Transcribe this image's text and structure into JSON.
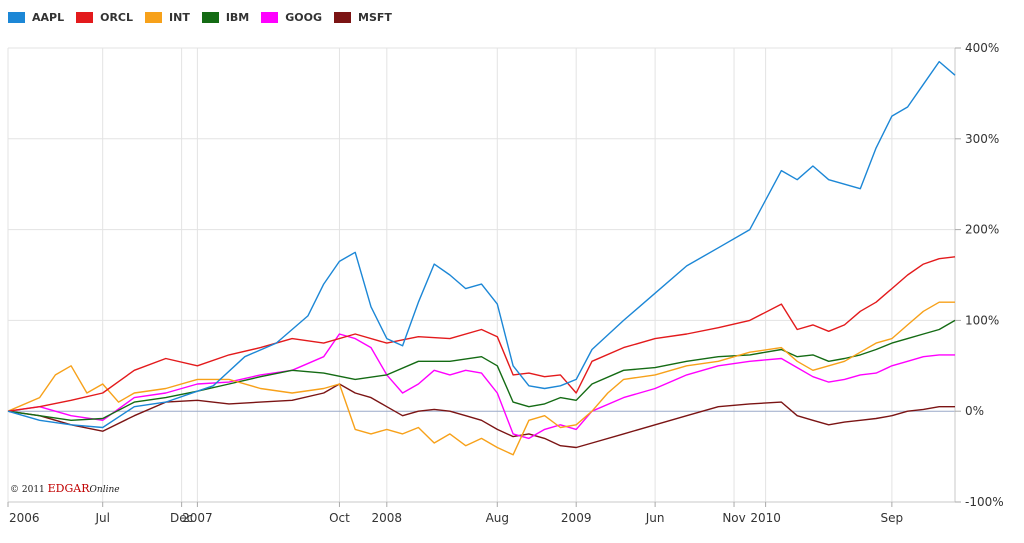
{
  "chart_data": {
    "type": "line",
    "title": "",
    "xlabel": "",
    "ylabel": "",
    "ylim": [
      -100,
      400
    ],
    "y_ticks": [
      "400%",
      "300%",
      "200%",
      "100%",
      "0%",
      "-100%"
    ],
    "y_tick_values": [
      400,
      300,
      200,
      100,
      0,
      -100
    ],
    "x_ticks": [
      "2006",
      "Jul",
      "Dec",
      "2007",
      "Oct",
      "2008",
      "Aug",
      "2009",
      "Jun",
      "Nov",
      "2010",
      "Sep"
    ],
    "x_tick_values": [
      0,
      6,
      11,
      12,
      21,
      24,
      31,
      36,
      41,
      46,
      48,
      56
    ],
    "x_range": [
      0,
      60
    ],
    "grid": true,
    "legend_position": "top-left",
    "series": [
      {
        "name": "AAPL",
        "color": "#1c87d6",
        "values": [
          [
            0,
            0
          ],
          [
            2,
            -10
          ],
          [
            4,
            -15
          ],
          [
            6,
            -18
          ],
          [
            8,
            5
          ],
          [
            10,
            10
          ],
          [
            12,
            22
          ],
          [
            13,
            28
          ],
          [
            15,
            60
          ],
          [
            17,
            75
          ],
          [
            19,
            105
          ],
          [
            20,
            140
          ],
          [
            21,
            165
          ],
          [
            22,
            175
          ],
          [
            23,
            115
          ],
          [
            24,
            80
          ],
          [
            25,
            72
          ],
          [
            26,
            120
          ],
          [
            27,
            162
          ],
          [
            28,
            150
          ],
          [
            29,
            135
          ],
          [
            30,
            140
          ],
          [
            31,
            118
          ],
          [
            32,
            50
          ],
          [
            33,
            28
          ],
          [
            34,
            25
          ],
          [
            35,
            28
          ],
          [
            36,
            35
          ],
          [
            37,
            68
          ],
          [
            39,
            100
          ],
          [
            41,
            130
          ],
          [
            43,
            160
          ],
          [
            45,
            180
          ],
          [
            47,
            200
          ],
          [
            49,
            265
          ],
          [
            50,
            255
          ],
          [
            51,
            270
          ],
          [
            52,
            255
          ],
          [
            53,
            250
          ],
          [
            54,
            245
          ],
          [
            55,
            290
          ],
          [
            56,
            325
          ],
          [
            57,
            335
          ],
          [
            58,
            360
          ],
          [
            59,
            385
          ],
          [
            60,
            370
          ]
        ]
      },
      {
        "name": "ORCL",
        "color": "#e31a1c",
        "values": [
          [
            0,
            0
          ],
          [
            2,
            5
          ],
          [
            4,
            12
          ],
          [
            6,
            20
          ],
          [
            8,
            45
          ],
          [
            10,
            58
          ],
          [
            12,
            50
          ],
          [
            14,
            62
          ],
          [
            16,
            70
          ],
          [
            18,
            80
          ],
          [
            20,
            75
          ],
          [
            22,
            85
          ],
          [
            24,
            75
          ],
          [
            26,
            82
          ],
          [
            28,
            80
          ],
          [
            30,
            90
          ],
          [
            31,
            82
          ],
          [
            32,
            40
          ],
          [
            33,
            42
          ],
          [
            34,
            38
          ],
          [
            35,
            40
          ],
          [
            36,
            20
          ],
          [
            37,
            55
          ],
          [
            39,
            70
          ],
          [
            41,
            80
          ],
          [
            43,
            85
          ],
          [
            45,
            92
          ],
          [
            47,
            100
          ],
          [
            49,
            118
          ],
          [
            50,
            90
          ],
          [
            51,
            95
          ],
          [
            52,
            88
          ],
          [
            53,
            95
          ],
          [
            54,
            110
          ],
          [
            55,
            120
          ],
          [
            56,
            135
          ],
          [
            57,
            150
          ],
          [
            58,
            162
          ],
          [
            59,
            168
          ],
          [
            60,
            170
          ]
        ]
      },
      {
        "name": "INT",
        "color": "#f7a11a",
        "values": [
          [
            0,
            0
          ],
          [
            2,
            15
          ],
          [
            3,
            40
          ],
          [
            4,
            50
          ],
          [
            5,
            20
          ],
          [
            6,
            30
          ],
          [
            7,
            10
          ],
          [
            8,
            20
          ],
          [
            10,
            25
          ],
          [
            12,
            35
          ],
          [
            14,
            35
          ],
          [
            16,
            25
          ],
          [
            18,
            20
          ],
          [
            20,
            25
          ],
          [
            21,
            30
          ],
          [
            22,
            -20
          ],
          [
            23,
            -25
          ],
          [
            24,
            -20
          ],
          [
            25,
            -25
          ],
          [
            26,
            -18
          ],
          [
            27,
            -35
          ],
          [
            28,
            -25
          ],
          [
            29,
            -38
          ],
          [
            30,
            -30
          ],
          [
            31,
            -40
          ],
          [
            32,
            -48
          ],
          [
            33,
            -10
          ],
          [
            34,
            -5
          ],
          [
            35,
            -18
          ],
          [
            36,
            -15
          ],
          [
            37,
            0
          ],
          [
            38,
            20
          ],
          [
            39,
            35
          ],
          [
            41,
            40
          ],
          [
            43,
            50
          ],
          [
            45,
            55
          ],
          [
            47,
            65
          ],
          [
            49,
            70
          ],
          [
            50,
            55
          ],
          [
            51,
            45
          ],
          [
            52,
            50
          ],
          [
            53,
            55
          ],
          [
            54,
            65
          ],
          [
            55,
            75
          ],
          [
            56,
            80
          ],
          [
            57,
            95
          ],
          [
            58,
            110
          ],
          [
            59,
            120
          ],
          [
            60,
            120
          ]
        ]
      },
      {
        "name": "IBM",
        "color": "#146b14",
        "values": [
          [
            0,
            0
          ],
          [
            2,
            -5
          ],
          [
            4,
            -10
          ],
          [
            6,
            -8
          ],
          [
            8,
            10
          ],
          [
            10,
            15
          ],
          [
            12,
            22
          ],
          [
            14,
            30
          ],
          [
            16,
            38
          ],
          [
            18,
            45
          ],
          [
            20,
            42
          ],
          [
            22,
            35
          ],
          [
            24,
            40
          ],
          [
            26,
            55
          ],
          [
            28,
            55
          ],
          [
            30,
            60
          ],
          [
            31,
            50
          ],
          [
            32,
            10
          ],
          [
            33,
            5
          ],
          [
            34,
            8
          ],
          [
            35,
            15
          ],
          [
            36,
            12
          ],
          [
            37,
            30
          ],
          [
            39,
            45
          ],
          [
            41,
            48
          ],
          [
            43,
            55
          ],
          [
            45,
            60
          ],
          [
            47,
            62
          ],
          [
            49,
            68
          ],
          [
            50,
            60
          ],
          [
            51,
            62
          ],
          [
            52,
            55
          ],
          [
            53,
            58
          ],
          [
            54,
            62
          ],
          [
            55,
            68
          ],
          [
            56,
            75
          ],
          [
            57,
            80
          ],
          [
            58,
            85
          ],
          [
            59,
            90
          ],
          [
            60,
            100
          ]
        ]
      },
      {
        "name": "GOOG",
        "color": "#ff00ff",
        "values": [
          [
            0,
            0
          ],
          [
            2,
            5
          ],
          [
            4,
            -5
          ],
          [
            6,
            -10
          ],
          [
            8,
            15
          ],
          [
            10,
            20
          ],
          [
            12,
            30
          ],
          [
            14,
            32
          ],
          [
            16,
            40
          ],
          [
            18,
            45
          ],
          [
            20,
            60
          ],
          [
            21,
            85
          ],
          [
            22,
            80
          ],
          [
            23,
            70
          ],
          [
            24,
            40
          ],
          [
            25,
            20
          ],
          [
            26,
            30
          ],
          [
            27,
            45
          ],
          [
            28,
            40
          ],
          [
            29,
            45
          ],
          [
            30,
            42
          ],
          [
            31,
            20
          ],
          [
            32,
            -25
          ],
          [
            33,
            -30
          ],
          [
            34,
            -20
          ],
          [
            35,
            -15
          ],
          [
            36,
            -20
          ],
          [
            37,
            0
          ],
          [
            39,
            15
          ],
          [
            41,
            25
          ],
          [
            43,
            40
          ],
          [
            45,
            50
          ],
          [
            47,
            55
          ],
          [
            49,
            58
          ],
          [
            50,
            48
          ],
          [
            51,
            38
          ],
          [
            52,
            32
          ],
          [
            53,
            35
          ],
          [
            54,
            40
          ],
          [
            55,
            42
          ],
          [
            56,
            50
          ],
          [
            57,
            55
          ],
          [
            58,
            60
          ],
          [
            59,
            62
          ],
          [
            60,
            62
          ]
        ]
      },
      {
        "name": "MSFT",
        "color": "#7b1414",
        "values": [
          [
            0,
            0
          ],
          [
            2,
            -5
          ],
          [
            4,
            -15
          ],
          [
            6,
            -22
          ],
          [
            8,
            -5
          ],
          [
            10,
            10
          ],
          [
            12,
            12
          ],
          [
            14,
            8
          ],
          [
            16,
            10
          ],
          [
            18,
            12
          ],
          [
            20,
            20
          ],
          [
            21,
            30
          ],
          [
            22,
            20
          ],
          [
            23,
            15
          ],
          [
            24,
            5
          ],
          [
            25,
            -5
          ],
          [
            26,
            0
          ],
          [
            27,
            2
          ],
          [
            28,
            0
          ],
          [
            29,
            -5
          ],
          [
            30,
            -10
          ],
          [
            31,
            -20
          ],
          [
            32,
            -28
          ],
          [
            33,
            -25
          ],
          [
            34,
            -30
          ],
          [
            35,
            -38
          ],
          [
            36,
            -40
          ],
          [
            37,
            -35
          ],
          [
            39,
            -25
          ],
          [
            41,
            -15
          ],
          [
            43,
            -5
          ],
          [
            45,
            5
          ],
          [
            47,
            8
          ],
          [
            49,
            10
          ],
          [
            50,
            -5
          ],
          [
            51,
            -10
          ],
          [
            52,
            -15
          ],
          [
            53,
            -12
          ],
          [
            54,
            -10
          ],
          [
            55,
            -8
          ],
          [
            56,
            -5
          ],
          [
            57,
            0
          ],
          [
            58,
            2
          ],
          [
            59,
            5
          ],
          [
            60,
            5
          ]
        ]
      }
    ]
  },
  "copyright": {
    "prefix": "© 2011",
    "brand": "EDGAR",
    "suffix": "Online"
  }
}
